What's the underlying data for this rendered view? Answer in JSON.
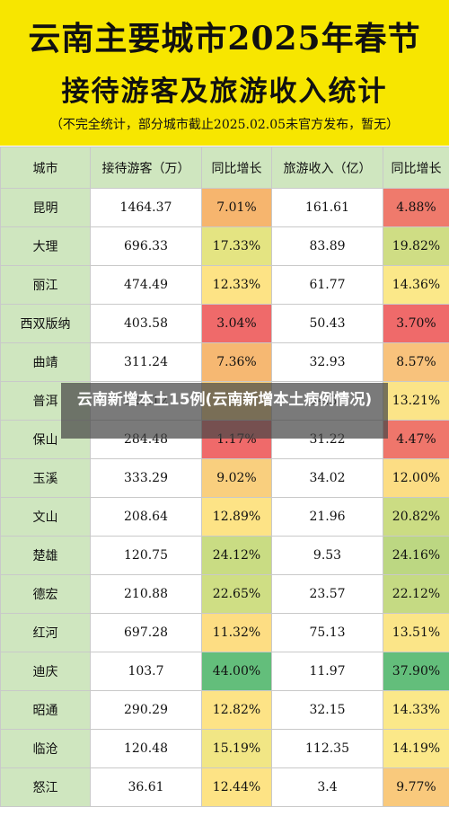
{
  "header": {
    "title_line1": "云南主要城市2025年春节",
    "title_line2": "接待游客及旅游收入统计",
    "note": "（不完全统计，部分城市截止2025.02.05未官方发布，暂无）"
  },
  "table": {
    "columns": [
      "城市",
      "接待游客（万）",
      "同比增长",
      "旅游收入（亿）",
      "同比增长"
    ],
    "rows": [
      {
        "city": "昆明",
        "visitors": "1464.37",
        "visitors_growth": "7.01%",
        "visitors_color": "#f6b56e",
        "revenue": "161.61",
        "revenue_growth": "4.88%",
        "revenue_color": "#ef7a6c"
      },
      {
        "city": "大理",
        "visitors": "696.33",
        "visitors_growth": "17.33%",
        "visitors_color": "#e4e482",
        "revenue": "83.89",
        "revenue_growth": "19.82%",
        "revenue_color": "#cfdd84"
      },
      {
        "city": "丽江",
        "visitors": "474.49",
        "visitors_growth": "12.33%",
        "visitors_color": "#fde385",
        "revenue": "61.77",
        "revenue_growth": "14.36%",
        "revenue_color": "#fbe889"
      },
      {
        "city": "西双版纳",
        "visitors": "403.58",
        "visitors_growth": "3.04%",
        "visitors_color": "#ef6a6a",
        "revenue": "50.43",
        "revenue_growth": "3.70%",
        "revenue_color": "#ef6a6a"
      },
      {
        "city": "曲靖",
        "visitors": "311.24",
        "visitors_growth": "7.36%",
        "visitors_color": "#f6b872",
        "revenue": "32.93",
        "revenue_growth": "8.57%",
        "revenue_color": "#f8c27c"
      },
      {
        "city": "普洱",
        "visitors": "325.12",
        "visitors_growth": "",
        "visitors_color": "#f9d37f",
        "revenue": "34.37",
        "revenue_growth": "13.21%",
        "revenue_color": "#fbe488"
      },
      {
        "city": "保山",
        "visitors": "284.48",
        "visitors_growth": "1.17%",
        "visitors_color": "#ef6a6a",
        "revenue": "31.22",
        "revenue_growth": "4.47%",
        "revenue_color": "#ef766b"
      },
      {
        "city": "玉溪",
        "visitors": "333.29",
        "visitors_growth": "9.02%",
        "visitors_color": "#f9cf7e",
        "revenue": "34.02",
        "revenue_growth": "12.00%",
        "revenue_color": "#fcdd84"
      },
      {
        "city": "文山",
        "visitors": "208.64",
        "visitors_growth": "12.89%",
        "visitors_color": "#fde386",
        "revenue": "21.96",
        "revenue_growth": "20.82%",
        "revenue_color": "#cbdc83"
      },
      {
        "city": "楚雄",
        "visitors": "120.75",
        "visitors_growth": "24.12%",
        "visitors_color": "#c9dc83",
        "revenue": "9.53",
        "revenue_growth": "24.16%",
        "revenue_color": "#bcd782"
      },
      {
        "city": "德宏",
        "visitors": "210.88",
        "visitors_growth": "22.65%",
        "visitors_color": "#cfde84",
        "revenue": "23.57",
        "revenue_growth": "22.12%",
        "revenue_color": "#c5da83"
      },
      {
        "city": "红河",
        "visitors": "697.28",
        "visitors_growth": "11.32%",
        "visitors_color": "#fddd83",
        "revenue": "75.13",
        "revenue_growth": "13.51%",
        "revenue_color": "#fbe588"
      },
      {
        "city": "迪庆",
        "visitors": "103.7",
        "visitors_growth": "44.00%",
        "visitors_color": "#63be7b",
        "revenue": "11.97",
        "revenue_growth": "37.90%",
        "revenue_color": "#63be7b"
      },
      {
        "city": "昭通",
        "visitors": "290.29",
        "visitors_growth": "12.82%",
        "visitors_color": "#fde386",
        "revenue": "32.15",
        "revenue_growth": "14.33%",
        "revenue_color": "#fbe889"
      },
      {
        "city": "临沧",
        "visitors": "120.48",
        "visitors_growth": "15.19%",
        "visitors_color": "#f1e685",
        "revenue": "112.35",
        "revenue_growth": "14.19%",
        "revenue_color": "#fbe889"
      },
      {
        "city": "怒江",
        "visitors": "36.61",
        "visitors_growth": "12.44%",
        "visitors_color": "#fde385",
        "revenue": "3.4",
        "revenue_growth": "9.77%",
        "revenue_color": "#f9c97c"
      }
    ]
  },
  "overlay": {
    "caption": "云南新增本土15例(云南新增本土病例情况)"
  }
}
